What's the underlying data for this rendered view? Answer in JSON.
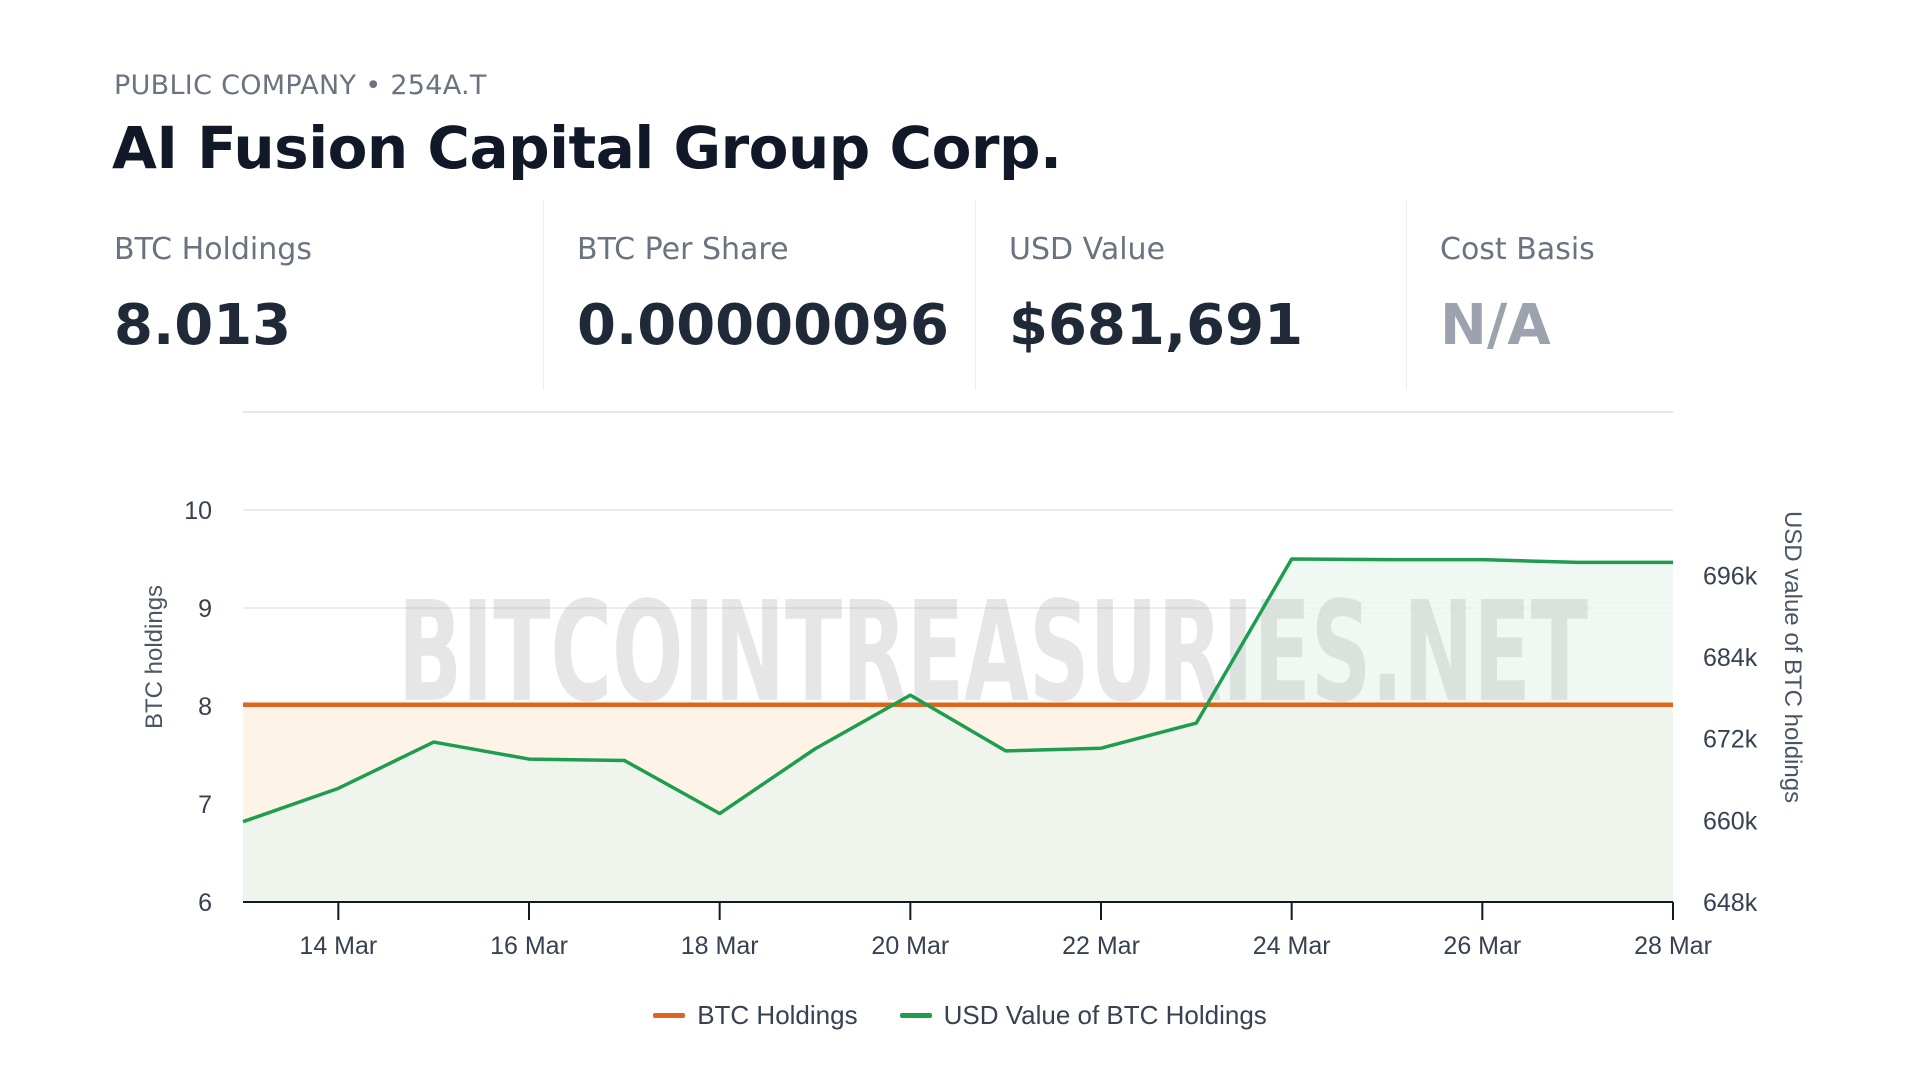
{
  "header": {
    "eyebrow": "PUBLIC COMPANY • 254A.T",
    "title": "AI Fusion Capital Group Corp."
  },
  "stats": [
    {
      "label": "BTC Holdings",
      "value": "8.013"
    },
    {
      "label": "BTC Per Share",
      "value": "0.00000096"
    },
    {
      "label": "USD Value",
      "value": "$681,691"
    },
    {
      "label": "Cost Basis",
      "value": "N/A"
    }
  ],
  "watermark": "BITCOINTREASURIES.NET",
  "colors": {
    "btc": "#e0641c",
    "usd": "#1f9d4f",
    "btc_fill": "#fdf3e4",
    "usd_fill": "#e9f6ee"
  },
  "chart_data": {
    "type": "line",
    "x": [
      "13 Mar",
      "14 Mar",
      "15 Mar",
      "16 Mar",
      "17 Mar",
      "18 Mar",
      "19 Mar",
      "20 Mar",
      "21 Mar",
      "22 Mar",
      "23 Mar",
      "24 Mar",
      "25 Mar",
      "26 Mar",
      "27 Mar",
      "28 Mar"
    ],
    "x_ticks": [
      "14 Mar",
      "16 Mar",
      "18 Mar",
      "20 Mar",
      "22 Mar",
      "24 Mar",
      "26 Mar",
      "28 Mar"
    ],
    "series": [
      {
        "name": "BTC Holdings",
        "axis": "left",
        "values": [
          8.013,
          8.013,
          8.013,
          8.013,
          8.013,
          8.013,
          8.013,
          8.013,
          8.013,
          8.013,
          8.013,
          8.013,
          8.013,
          8.013,
          8.013,
          8.013
        ]
      },
      {
        "name": "USD Value of BTC Holdings",
        "axis": "right",
        "values": [
          659800,
          664700,
          671500,
          669000,
          668800,
          661000,
          670500,
          678400,
          670200,
          670600,
          674300,
          698400,
          698300,
          698300,
          697900,
          697900
        ]
      }
    ],
    "y_left": {
      "label": "BTC holdings",
      "ticks": [
        "6",
        "7",
        "8",
        "9",
        "10"
      ],
      "lim": [
        6,
        11
      ]
    },
    "y_right": {
      "label": "USD value of BTC holdings",
      "ticks": [
        "648k",
        "660k",
        "672k",
        "684k",
        "696k"
      ],
      "lim": [
        648000,
        720000
      ]
    },
    "legend_position": "bottom",
    "grid": true
  }
}
